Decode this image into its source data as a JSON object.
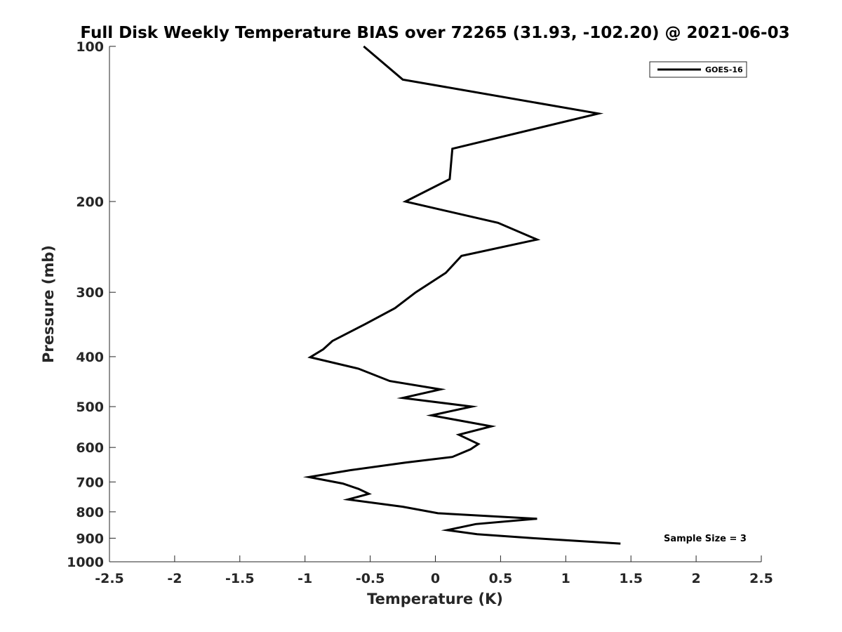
{
  "chart_data": {
    "type": "line",
    "title": "Full Disk Weekly Temperature BIAS over 72265 (31.93, -102.20) @ 2021-06-03",
    "xlabel": "Temperature (K)",
    "ylabel": "Pressure (mb)",
    "xlim": [
      -2.5,
      2.5
    ],
    "ylim": [
      1000,
      100
    ],
    "yscale": "log",
    "x_ticks": [
      "-2.5",
      "-2",
      "-1.5",
      "-1",
      "-0.5",
      "0",
      "0.5",
      "1",
      "1.5",
      "2",
      "2.5"
    ],
    "y_ticks": [
      "100",
      "200",
      "300",
      "400",
      "500",
      "600",
      "700",
      "800",
      "900",
      "1000"
    ],
    "grid": false,
    "legend": "top-right",
    "annotation": "Sample Size = 3",
    "series": [
      {
        "name": "GOES-16",
        "color": "#000000",
        "points": [
          {
            "x": -0.55,
            "p": 100
          },
          {
            "x": -0.25,
            "p": 116
          },
          {
            "x": 1.25,
            "p": 135
          },
          {
            "x": 0.13,
            "p": 158
          },
          {
            "x": 0.11,
            "p": 181
          },
          {
            "x": -0.23,
            "p": 200
          },
          {
            "x": 0.48,
            "p": 220
          },
          {
            "x": 0.78,
            "p": 237
          },
          {
            "x": 0.2,
            "p": 255
          },
          {
            "x": 0.08,
            "p": 275
          },
          {
            "x": -0.15,
            "p": 300
          },
          {
            "x": -0.31,
            "p": 322
          },
          {
            "x": -0.54,
            "p": 346
          },
          {
            "x": -0.79,
            "p": 373
          },
          {
            "x": -0.86,
            "p": 387
          },
          {
            "x": -0.96,
            "p": 401
          },
          {
            "x": -0.59,
            "p": 422
          },
          {
            "x": -0.35,
            "p": 446
          },
          {
            "x": 0.04,
            "p": 463
          },
          {
            "x": -0.25,
            "p": 481
          },
          {
            "x": 0.28,
            "p": 500
          },
          {
            "x": -0.03,
            "p": 520
          },
          {
            "x": 0.43,
            "p": 546
          },
          {
            "x": 0.18,
            "p": 567
          },
          {
            "x": 0.33,
            "p": 591
          },
          {
            "x": 0.27,
            "p": 605
          },
          {
            "x": 0.13,
            "p": 626
          },
          {
            "x": -0.23,
            "p": 642
          },
          {
            "x": -0.65,
            "p": 664
          },
          {
            "x": -0.97,
            "p": 685
          },
          {
            "x": -0.71,
            "p": 705
          },
          {
            "x": -0.59,
            "p": 722
          },
          {
            "x": -0.51,
            "p": 738
          },
          {
            "x": -0.67,
            "p": 757
          },
          {
            "x": -0.25,
            "p": 782
          },
          {
            "x": 0.02,
            "p": 805
          },
          {
            "x": 0.78,
            "p": 825
          },
          {
            "x": 0.31,
            "p": 845
          },
          {
            "x": 0.09,
            "p": 868
          },
          {
            "x": 0.32,
            "p": 884
          },
          {
            "x": 0.75,
            "p": 900
          },
          {
            "x": 1.42,
            "p": 922
          }
        ]
      }
    ]
  }
}
